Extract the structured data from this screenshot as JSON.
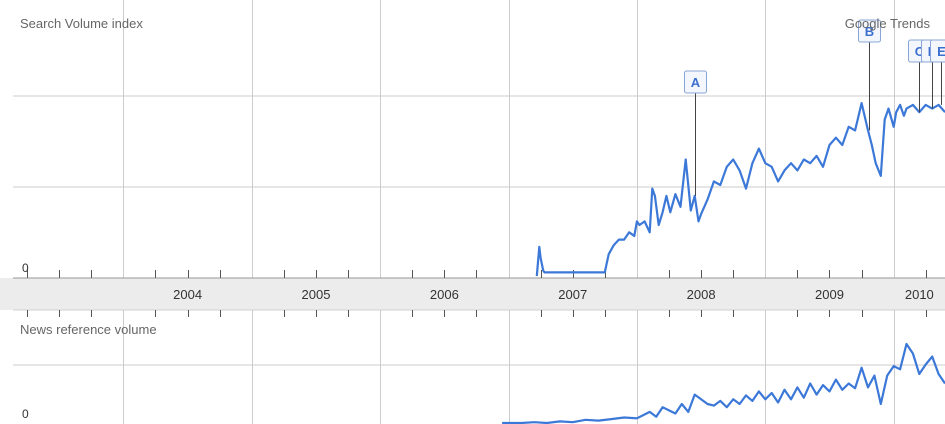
{
  "header": {
    "search_label": "Search Volume index",
    "brand_label": "Google Trends"
  },
  "colors": {
    "line": "#3c78d8",
    "grid": "#cccccc",
    "axis_band": "#ececec",
    "text": "#666666",
    "flag_text": "#3a6fd0",
    "flag_border": "#8aa6d6"
  },
  "chart_data": [
    {
      "type": "line",
      "title": "Search Volume index",
      "x_unit": "year",
      "xlim": [
        2003.14,
        2010.4
      ],
      "ylim": [
        0,
        1
      ],
      "y_tick_labels": [
        "0"
      ],
      "grid": true,
      "categories": [
        "2004",
        "2005",
        "2006",
        "2007",
        "2008",
        "2009",
        "2010"
      ],
      "series": [
        {
          "x": [
            2007.22,
            2007.24,
            2007.25,
            2007.27,
            2007.28,
            2007.5,
            2007.75,
            2007.78,
            2007.82,
            2007.86,
            2007.9,
            2007.94,
            2007.98,
            2008.0,
            2008.02,
            2008.06,
            2008.1,
            2008.12,
            2008.14,
            2008.17,
            2008.2,
            2008.23,
            2008.26,
            2008.3,
            2008.34,
            2008.38,
            2008.42,
            2008.45,
            2008.48,
            2008.5,
            2008.55,
            2008.6,
            2008.65,
            2008.7,
            2008.75,
            2008.8,
            2008.85,
            2008.9,
            2008.95,
            2009.0,
            2009.05,
            2009.1,
            2009.15,
            2009.2,
            2009.25,
            2009.3,
            2009.35,
            2009.4,
            2009.45,
            2009.5,
            2009.55,
            2009.6,
            2009.65,
            2009.7,
            2009.75,
            2009.8,
            2009.83,
            2009.86,
            2009.9,
            2009.93,
            2009.96,
            2010.0,
            2010.02,
            2010.05,
            2010.08,
            2010.1,
            2010.15,
            2010.2,
            2010.25,
            2010.3,
            2010.35,
            2010.4
          ],
          "y": [
            0,
            0.16,
            0.1,
            0.03,
            0.02,
            0.02,
            0.02,
            0.12,
            0.17,
            0.2,
            0.2,
            0.24,
            0.22,
            0.3,
            0.28,
            0.3,
            0.24,
            0.48,
            0.44,
            0.28,
            0.35,
            0.44,
            0.35,
            0.45,
            0.38,
            0.64,
            0.36,
            0.44,
            0.3,
            0.34,
            0.42,
            0.52,
            0.5,
            0.6,
            0.64,
            0.58,
            0.48,
            0.62,
            0.7,
            0.62,
            0.6,
            0.52,
            0.58,
            0.62,
            0.58,
            0.64,
            0.62,
            0.66,
            0.6,
            0.72,
            0.76,
            0.72,
            0.82,
            0.8,
            0.95,
            0.8,
            0.72,
            0.62,
            0.55,
            0.86,
            0.92,
            0.82,
            0.9,
            0.94,
            0.88,
            0.92,
            0.94,
            0.9,
            0.94,
            0.92,
            0.94,
            0.9
          ]
        }
      ],
      "annotations": [
        {
          "label": "A",
          "x": 2008.45
        },
        {
          "label": "B",
          "x": 2009.81
        },
        {
          "label": "C",
          "x": 2010.2
        },
        {
          "label": "D",
          "x": 2010.3
        },
        {
          "label": "E",
          "x": 2010.37
        }
      ]
    },
    {
      "type": "line",
      "title": "News reference volume",
      "x_unit": "year",
      "xlim": [
        2003.14,
        2010.4
      ],
      "ylim": [
        0,
        1
      ],
      "y_tick_labels": [
        "0"
      ],
      "grid": true,
      "series": [
        {
          "x": [
            2006.95,
            2007.1,
            2007.2,
            2007.3,
            2007.4,
            2007.5,
            2007.6,
            2007.7,
            2007.8,
            2007.9,
            2008.0,
            2008.05,
            2008.1,
            2008.15,
            2008.2,
            2008.25,
            2008.3,
            2008.35,
            2008.4,
            2008.45,
            2008.5,
            2008.55,
            2008.6,
            2008.65,
            2008.7,
            2008.75,
            2008.8,
            2008.85,
            2008.9,
            2008.95,
            2009.0,
            2009.05,
            2009.1,
            2009.15,
            2009.2,
            2009.25,
            2009.3,
            2009.35,
            2009.4,
            2009.45,
            2009.5,
            2009.55,
            2009.6,
            2009.65,
            2009.7,
            2009.75,
            2009.8,
            2009.85,
            2009.9,
            2009.95,
            2010.0,
            2010.05,
            2010.1,
            2010.15,
            2010.2,
            2010.25,
            2010.3,
            2010.35,
            2010.4
          ],
          "y": [
            0,
            0,
            0.01,
            0,
            0.02,
            0.01,
            0.04,
            0.03,
            0.05,
            0.07,
            0.06,
            0.1,
            0.14,
            0.08,
            0.2,
            0.16,
            0.12,
            0.24,
            0.14,
            0.36,
            0.3,
            0.24,
            0.22,
            0.28,
            0.2,
            0.3,
            0.24,
            0.35,
            0.28,
            0.4,
            0.3,
            0.38,
            0.26,
            0.42,
            0.3,
            0.45,
            0.32,
            0.5,
            0.36,
            0.48,
            0.4,
            0.55,
            0.42,
            0.5,
            0.44,
            0.7,
            0.45,
            0.6,
            0.24,
            0.6,
            0.72,
            0.68,
            1.0,
            0.88,
            0.62,
            0.74,
            0.84,
            0.62,
            0.5
          ]
        }
      ]
    }
  ]
}
